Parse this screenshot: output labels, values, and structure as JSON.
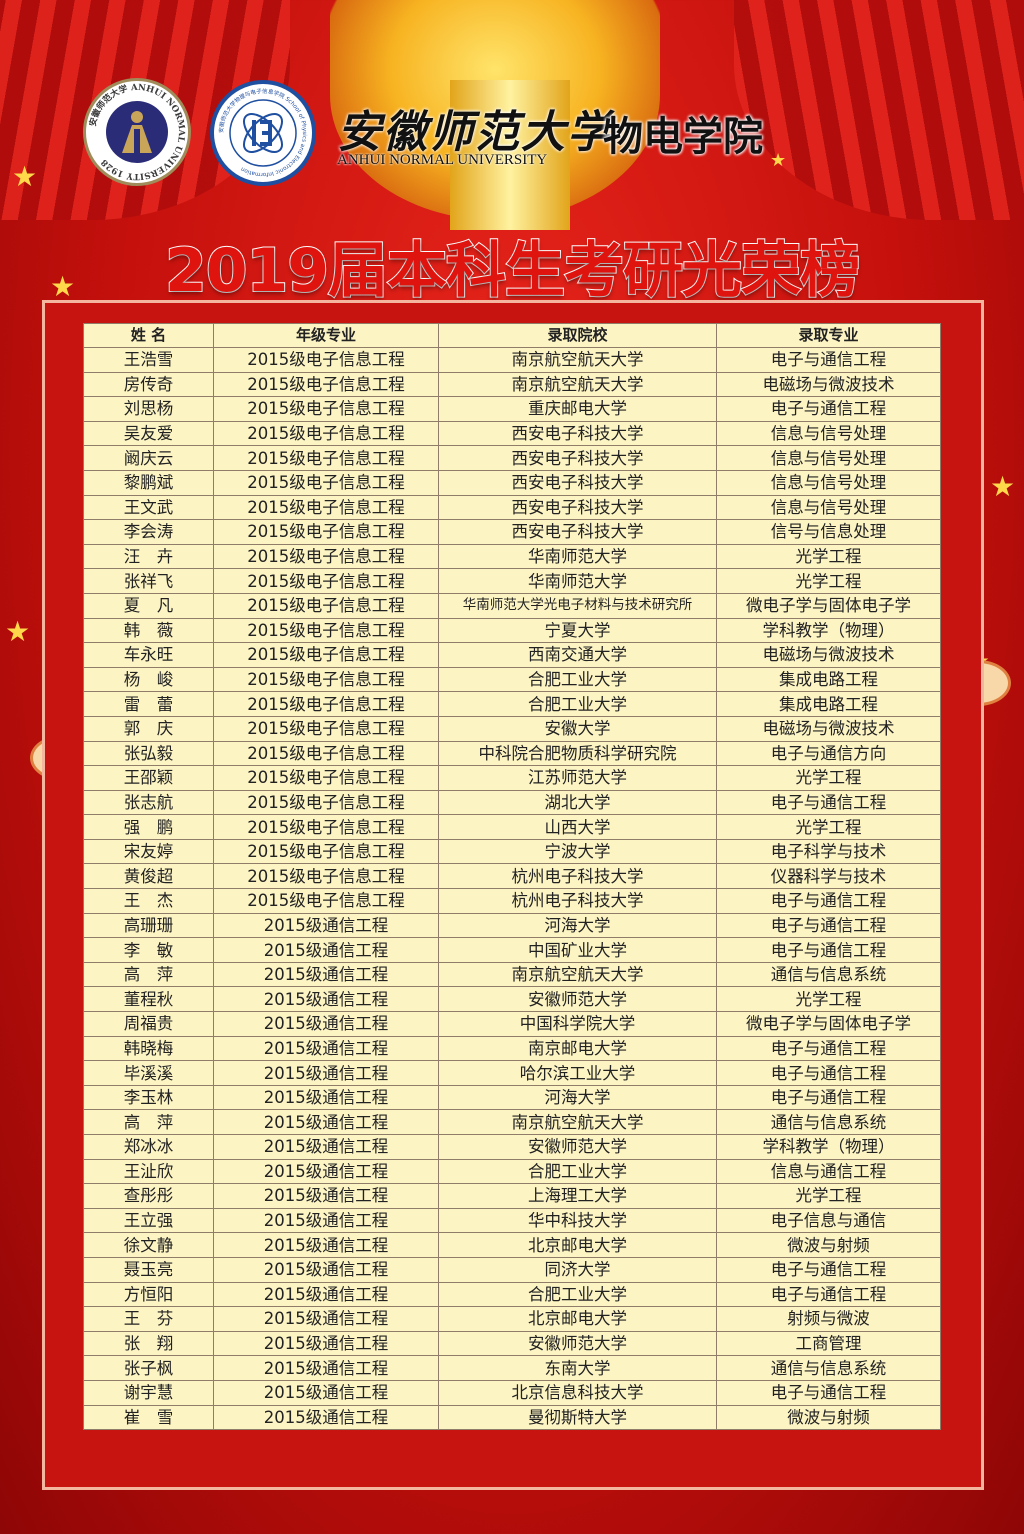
{
  "header": {
    "university_logo_text": "安徽师范大学 ANHUI NORMAL UNIVERSITY 1928",
    "college_logo_text": "安徽师范大学物理与电子信息学院 School of Physics and Electronic Information",
    "university_name_cn": "安徽师范大学",
    "university_name_en": "ANHUI NORMAL UNIVERSITY",
    "college_name": "物电学院",
    "title": "2019届本科生考研光荣榜"
  },
  "colors": {
    "background": "#c81410",
    "title": "#e0140f",
    "table_bg": "#fdf4c4"
  },
  "table": {
    "columns": [
      "姓 名",
      "年级专业",
      "录取院校",
      "录取专业"
    ],
    "rows": [
      [
        "王浩雪",
        "2015级电子信息工程",
        "南京航空航天大学",
        "电子与通信工程"
      ],
      [
        "房传奇",
        "2015级电子信息工程",
        "南京航空航天大学",
        "电磁场与微波技术"
      ],
      [
        "刘思杨",
        "2015级电子信息工程",
        "重庆邮电大学",
        "电子与通信工程"
      ],
      [
        "吴友爱",
        "2015级电子信息工程",
        "西安电子科技大学",
        "信息与信号处理"
      ],
      [
        "阚庆云",
        "2015级电子信息工程",
        "西安电子科技大学",
        "信息与信号处理"
      ],
      [
        "黎鹏斌",
        "2015级电子信息工程",
        "西安电子科技大学",
        "信息与信号处理"
      ],
      [
        "王文武",
        "2015级电子信息工程",
        "西安电子科技大学",
        "信息与信号处理"
      ],
      [
        "李会涛",
        "2015级电子信息工程",
        "西安电子科技大学",
        "信号与信息处理"
      ],
      [
        "汪　卉",
        "2015级电子信息工程",
        "华南师范大学",
        "光学工程"
      ],
      [
        "张祥飞",
        "2015级电子信息工程",
        "华南师范大学",
        "光学工程"
      ],
      [
        "夏　凡",
        "2015级电子信息工程",
        "华南师范大学光电子材料与技术研究所",
        "微电子学与固体电子学"
      ],
      [
        "韩　薇",
        "2015级电子信息工程",
        "宁夏大学",
        "学科教学（物理）"
      ],
      [
        "车永旺",
        "2015级电子信息工程",
        "西南交通大学",
        "电磁场与微波技术"
      ],
      [
        "杨　峻",
        "2015级电子信息工程",
        "合肥工业大学",
        "集成电路工程"
      ],
      [
        "雷　蕾",
        "2015级电子信息工程",
        "合肥工业大学",
        "集成电路工程"
      ],
      [
        "郭　庆",
        "2015级电子信息工程",
        "安徽大学",
        "电磁场与微波技术"
      ],
      [
        "张弘毅",
        "2015级电子信息工程",
        "中科院合肥物质科学研究院",
        "电子与通信方向"
      ],
      [
        "王邵颖",
        "2015级电子信息工程",
        "江苏师范大学",
        "光学工程"
      ],
      [
        "张志航",
        "2015级电子信息工程",
        "湖北大学",
        "电子与通信工程"
      ],
      [
        "强　鹏",
        "2015级电子信息工程",
        "山西大学",
        "光学工程"
      ],
      [
        "宋友婷",
        "2015级电子信息工程",
        "宁波大学",
        "电子科学与技术"
      ],
      [
        "黄俊超",
        "2015级电子信息工程",
        "杭州电子科技大学",
        "仪器科学与技术"
      ],
      [
        "王　杰",
        "2015级电子信息工程",
        "杭州电子科技大学",
        "电子与通信工程"
      ],
      [
        "高珊珊",
        "2015级通信工程",
        "河海大学",
        "电子与通信工程"
      ],
      [
        "李　敏",
        "2015级通信工程",
        "中国矿业大学",
        "电子与通信工程"
      ],
      [
        "高　萍",
        "2015级通信工程",
        "南京航空航天大学",
        "通信与信息系统"
      ],
      [
        "董程秋",
        "2015级通信工程",
        "安徽师范大学",
        "光学工程"
      ],
      [
        "周福贵",
        "2015级通信工程",
        "中国科学院大学",
        "微电子学与固体电子学"
      ],
      [
        "韩晓梅",
        "2015级通信工程",
        "南京邮电大学",
        "电子与通信工程"
      ],
      [
        "毕溪溪",
        "2015级通信工程",
        "哈尔滨工业大学",
        "电子与通信工程"
      ],
      [
        "李玉林",
        "2015级通信工程",
        "河海大学",
        "电子与通信工程"
      ],
      [
        "高　萍",
        "2015级通信工程",
        "南京航空航天大学",
        "通信与信息系统"
      ],
      [
        "郑冰冰",
        "2015级通信工程",
        "安徽师范大学",
        "学科教学（物理）"
      ],
      [
        "王沚欣",
        "2015级通信工程",
        "合肥工业大学",
        "信息与通信工程"
      ],
      [
        "查彤彤",
        "2015级通信工程",
        "上海理工大学",
        "光学工程"
      ],
      [
        "王立强",
        "2015级通信工程",
        "华中科技大学",
        "电子信息与通信"
      ],
      [
        "徐文静",
        "2015级通信工程",
        "北京邮电大学",
        "微波与射频"
      ],
      [
        "聂玉亮",
        "2015级通信工程",
        "同济大学",
        "电子与通信工程"
      ],
      [
        "方恒阳",
        "2015级通信工程",
        "合肥工业大学",
        "电子与通信工程"
      ],
      [
        "王　芬",
        "2015级通信工程",
        "北京邮电大学",
        "射频与微波"
      ],
      [
        "张　翔",
        "2015级通信工程",
        "安徽师范大学",
        "工商管理"
      ],
      [
        "张子枫",
        "2015级通信工程",
        "东南大学",
        "通信与信息系统"
      ],
      [
        "谢宇慧",
        "2015级通信工程",
        "北京信息科技大学",
        "电子与通信工程"
      ],
      [
        "崔　雪",
        "2015级通信工程",
        "曼彻斯特大学",
        "微波与射频"
      ]
    ]
  }
}
